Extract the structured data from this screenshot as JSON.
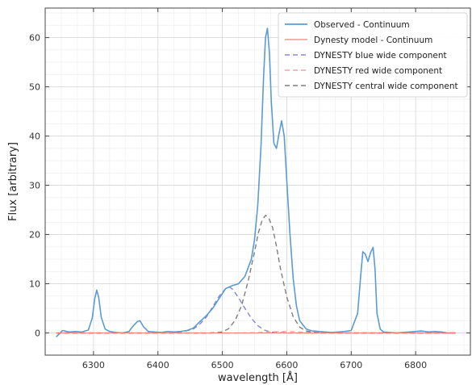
{
  "chart_data": {
    "type": "line",
    "title": "",
    "xlabel": "wavelength [Å]",
    "ylabel": "Flux [arbitrary]",
    "xlim": [
      6225,
      6885
    ],
    "ylim": [
      -4.5,
      66
    ],
    "xticks": [
      6300,
      6400,
      6500,
      6600,
      6700,
      6800
    ],
    "yticks": [
      0,
      10,
      20,
      30,
      40,
      50,
      60
    ],
    "grid": true,
    "legend_position": "top-right",
    "series": [
      {
        "name": "Observed - Continuum",
        "color": "#5b9bd5",
        "style": "solid",
        "x": [
          6242,
          6252,
          6262,
          6272,
          6282,
          6292,
          6298,
          6302,
          6305,
          6308,
          6312,
          6318,
          6325,
          6335,
          6345,
          6355,
          6362,
          6368,
          6372,
          6378,
          6385,
          6395,
          6405,
          6415,
          6425,
          6435,
          6445,
          6455,
          6465,
          6475,
          6485,
          6495,
          6505,
          6515,
          6525,
          6535,
          6545,
          6550,
          6555,
          6560,
          6564,
          6567,
          6570,
          6573,
          6576,
          6580,
          6584,
          6588,
          6592,
          6596,
          6600,
          6605,
          6610,
          6615,
          6620,
          6630,
          6640,
          6650,
          6660,
          6670,
          6680,
          6690,
          6700,
          6710,
          6715,
          6718,
          6722,
          6726,
          6730,
          6734,
          6737,
          6740,
          6745,
          6750,
          6760,
          6770,
          6780,
          6790,
          6800,
          6810,
          6820,
          6830,
          6840,
          6850,
          6862
        ],
        "y": [
          -0.8,
          0.5,
          0.2,
          0.3,
          0.2,
          0.6,
          3.0,
          7.0,
          8.7,
          7.3,
          3.2,
          0.8,
          0.3,
          0.1,
          0.0,
          0.3,
          1.5,
          2.3,
          2.5,
          1.2,
          0.3,
          0.2,
          0.1,
          0.3,
          0.2,
          0.3,
          0.5,
          1.0,
          2.3,
          3.5,
          5.0,
          7.0,
          9.0,
          9.6,
          10.0,
          11.5,
          15.0,
          19.0,
          26.0,
          38.0,
          52.0,
          60.0,
          61.9,
          57.0,
          47.0,
          38.5,
          37.5,
          40.5,
          43.1,
          40.0,
          31.0,
          20.0,
          11.0,
          5.5,
          2.5,
          0.8,
          0.4,
          0.3,
          0.2,
          0.1,
          0.2,
          0.3,
          0.5,
          4.0,
          12.0,
          16.5,
          16.0,
          14.5,
          16.3,
          17.4,
          13.0,
          4.0,
          0.8,
          0.2,
          0.1,
          0.0,
          0.1,
          0.2,
          0.3,
          0.4,
          0.2,
          0.3,
          0.2,
          0.0,
          0.0
        ]
      },
      {
        "name": "Dynesty model - Continuum",
        "color": "#f08080",
        "style": "solid",
        "x": [
          6242,
          6300,
          6310,
          6450,
          6500,
          6550,
          6567,
          6580,
          6592,
          6620,
          6700,
          6760,
          6862
        ],
        "y": [
          0,
          0,
          0,
          0,
          0,
          0,
          0,
          0,
          0,
          0,
          0,
          0,
          0
        ]
      },
      {
        "name": "DYNESTY blue wide component",
        "color": "#8585e0",
        "style": "dashed",
        "x": [
          6242,
          6420,
          6440,
          6455,
          6465,
          6475,
          6485,
          6495,
          6505,
          6510,
          6515,
          6525,
          6535,
          6545,
          6555,
          6565,
          6575,
          6585,
          6600,
          6620,
          6862
        ],
        "y": [
          0,
          0,
          0.3,
          0.8,
          1.8,
          3.2,
          5.3,
          7.5,
          9.0,
          9.4,
          9.0,
          7.2,
          5.0,
          3.0,
          1.5,
          0.6,
          0.2,
          0.1,
          0,
          0,
          0
        ]
      },
      {
        "name": "DYNESTY red wide component",
        "color": "#f4a3a3",
        "style": "dashed",
        "x": [
          6242,
          6520,
          6550,
          6570,
          6590,
          6610,
          6630,
          6660,
          6862
        ],
        "y": [
          0,
          0,
          0.05,
          0.2,
          0.3,
          0.25,
          0.15,
          0.05,
          0
        ]
      },
      {
        "name": "DYNESTY central wide component",
        "color": "#7f7f7f",
        "style": "dashed",
        "x": [
          6242,
          6480,
          6500,
          6510,
          6520,
          6530,
          6540,
          6550,
          6556,
          6562,
          6567,
          6572,
          6578,
          6584,
          6590,
          6600,
          6610,
          6620,
          6630,
          6645,
          6660,
          6862
        ],
        "y": [
          0,
          0,
          0.2,
          0.9,
          2.6,
          5.6,
          10.5,
          16.5,
          20.4,
          23.0,
          23.9,
          23.4,
          21.4,
          17.6,
          13.2,
          7.3,
          3.3,
          1.2,
          0.4,
          0.1,
          0,
          0
        ]
      }
    ]
  }
}
